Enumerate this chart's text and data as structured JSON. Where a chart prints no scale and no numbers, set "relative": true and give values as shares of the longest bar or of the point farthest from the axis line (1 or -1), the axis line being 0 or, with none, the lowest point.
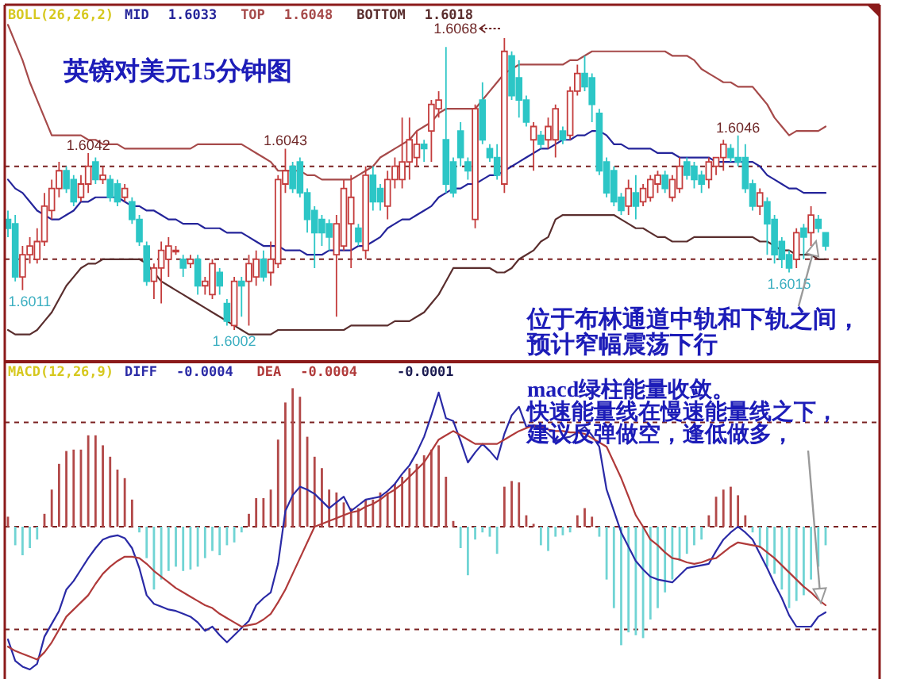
{
  "chart_data": [
    {
      "type": "candlestick",
      "title": "英镑对美元15分钟图",
      "legend_title": "BOLL(26,26,2)",
      "legend": "top left",
      "categories": [
        null,
        null,
        null,
        null,
        null,
        null,
        null,
        null,
        null,
        null,
        null,
        null,
        null,
        null,
        null,
        null,
        null,
        null,
        null,
        null,
        null,
        null,
        null,
        null,
        null,
        null,
        null,
        null,
        null,
        null,
        null,
        null,
        null,
        null,
        null,
        null,
        null,
        null,
        null,
        null,
        null,
        null,
        null,
        null,
        null,
        null,
        null,
        null,
        null,
        null,
        null,
        null,
        null,
        null,
        null,
        null,
        null,
        null,
        null,
        null,
        null,
        null,
        null,
        null,
        null,
        null,
        null,
        null,
        null,
        null,
        null,
        null,
        null,
        null,
        null,
        null,
        null,
        null,
        null,
        null,
        null,
        null,
        null,
        null,
        null,
        null,
        null,
        null,
        null,
        null,
        null,
        null,
        null,
        null,
        null,
        null,
        null,
        null,
        null,
        null,
        null,
        null,
        null,
        null,
        null,
        null,
        null,
        null,
        null,
        null,
        null,
        null,
        null
      ],
      "ohlc": [
        [
          1.6027,
          1.6029,
          1.6023,
          1.6025
        ],
        [
          1.6026,
          1.6028,
          1.6013,
          1.6014
        ],
        [
          1.6014,
          1.6021,
          1.6011,
          1.6019
        ],
        [
          1.6019,
          1.6023,
          1.6017,
          1.6021
        ],
        [
          1.6018,
          1.6025,
          1.6017,
          1.6022
        ],
        [
          1.6022,
          1.6033,
          1.6021,
          1.603
        ],
        [
          1.6029,
          1.6036,
          1.6027,
          1.6034
        ],
        [
          1.6034,
          1.604,
          1.6032,
          1.6038
        ],
        [
          1.6038,
          1.6039,
          1.6033,
          1.6034
        ],
        [
          1.6036,
          1.6037,
          1.603,
          1.6031
        ],
        [
          1.6032,
          1.6037,
          1.6031,
          1.6035
        ],
        [
          1.6035,
          1.6042,
          1.6033,
          1.6039
        ],
        [
          1.604,
          1.6041,
          1.6035,
          1.6036
        ],
        [
          1.6036,
          1.6039,
          1.6035,
          1.6037
        ],
        [
          1.6036,
          1.6037,
          1.6031,
          1.6032
        ],
        [
          1.6035,
          1.6036,
          1.603,
          1.6031
        ],
        [
          1.6032,
          1.6035,
          1.6031,
          1.6034
        ],
        [
          1.6031,
          1.6032,
          1.6026,
          1.6027
        ],
        [
          1.6027,
          1.6028,
          1.6021,
          1.6022
        ],
        [
          1.6021,
          1.6022,
          1.6012,
          1.6013
        ],
        [
          1.6013,
          1.6017,
          1.6009,
          1.6016
        ],
        [
          1.6016,
          1.6022,
          1.6008,
          1.602
        ],
        [
          1.6018,
          1.6023,
          1.6014,
          1.6021
        ],
        [
          1.602,
          1.6021,
          1.6019,
          1.602
        ],
        [
          1.6018,
          1.6019,
          1.6014,
          1.6016
        ],
        [
          1.6017,
          1.6019,
          1.6016,
          1.6018
        ],
        [
          1.6018,
          1.6019,
          1.601,
          1.6012
        ],
        [
          1.6012,
          1.6014,
          1.601,
          1.6013
        ],
        [
          1.601,
          1.6018,
          1.6009,
          1.6017
        ],
        [
          1.6015,
          1.6016,
          1.601,
          1.6012
        ],
        [
          1.6008,
          1.6009,
          1.6003,
          1.6004
        ],
        [
          1.6003,
          1.6014,
          1.6002,
          1.6013
        ],
        [
          1.6013,
          1.6014,
          1.6005,
          1.6012
        ],
        [
          1.6013,
          1.6019,
          1.6003,
          1.6017
        ],
        [
          1.6014,
          1.602,
          1.6012,
          1.6018
        ],
        [
          1.6018,
          1.602,
          1.6013,
          1.6014
        ],
        [
          1.6015,
          1.6022,
          1.6012,
          1.6018
        ],
        [
          1.6017,
          1.6037,
          1.6016,
          1.6036
        ],
        [
          1.6035,
          1.6043,
          1.6033,
          1.6038
        ],
        [
          1.6039,
          1.604,
          1.6033,
          1.6034
        ],
        [
          1.604,
          1.6041,
          1.6032,
          1.6033
        ],
        [
          1.6033,
          1.6034,
          1.6024,
          1.6027
        ],
        [
          1.6029,
          1.603,
          1.6016,
          1.6024
        ],
        [
          1.6027,
          1.6028,
          1.6021,
          1.6024
        ],
        [
          1.6026,
          1.6027,
          1.602,
          1.6023
        ],
        [
          1.6019,
          1.6028,
          1.6005,
          1.6026
        ],
        [
          1.6021,
          1.6036,
          1.602,
          1.6034
        ],
        [
          1.6026,
          1.6037,
          1.6016,
          1.6032
        ],
        [
          1.6025,
          1.6026,
          1.6021,
          1.6022
        ],
        [
          1.602,
          1.6039,
          1.6018,
          1.6037
        ],
        [
          1.6037,
          1.6039,
          1.6029,
          1.6031
        ],
        [
          1.6034,
          1.6035,
          1.6029,
          1.6031
        ],
        [
          1.603,
          1.6038,
          1.6027,
          1.6036
        ],
        [
          1.6036,
          1.6041,
          1.6034,
          1.6039
        ],
        [
          1.6036,
          1.605,
          1.6034,
          1.604
        ],
        [
          1.604,
          1.605,
          1.6036,
          1.6045
        ],
        [
          1.6041,
          1.6047,
          1.6039,
          1.6044
        ],
        [
          1.6044,
          1.6045,
          1.604,
          1.6043
        ],
        [
          1.6047,
          1.6054,
          1.604,
          1.6053
        ],
        [
          1.6052,
          1.6056,
          1.605,
          1.6054
        ],
        [
          1.6045,
          1.6066,
          1.6033,
          1.6035
        ],
        [
          1.604,
          1.6041,
          1.6032,
          1.6033
        ],
        [
          1.6047,
          1.6049,
          1.6039,
          1.6041
        ],
        [
          1.604,
          1.6041,
          1.6036,
          1.6038
        ],
        [
          1.6027,
          1.6053,
          1.6025,
          1.6052
        ],
        [
          1.6054,
          1.6058,
          1.6044,
          1.6045
        ],
        [
          1.6043,
          1.6044,
          1.604,
          1.6041
        ],
        [
          1.6041,
          1.6044,
          1.6036,
          1.6037
        ],
        [
          1.6035,
          1.6068,
          1.6033,
          1.6065
        ],
        [
          1.6064,
          1.6065,
          1.6054,
          1.6055
        ],
        [
          1.6059,
          1.6063,
          1.605,
          1.6054
        ],
        [
          1.6054,
          1.6055,
          1.6048,
          1.6049
        ],
        [
          1.6045,
          1.6049,
          1.6038,
          1.6048
        ],
        [
          1.6046,
          1.6047,
          1.6043,
          1.6044
        ],
        [
          1.6045,
          1.605,
          1.6043,
          1.6048
        ],
        [
          1.6045,
          1.6053,
          1.6041,
          1.6052
        ],
        [
          1.6047,
          1.6048,
          1.6044,
          1.6045
        ],
        [
          1.6046,
          1.6057,
          1.6045,
          1.6056
        ],
        [
          1.6056,
          1.6062,
          1.6055,
          1.606
        ],
        [
          1.606,
          1.6064,
          1.6056,
          1.6057
        ],
        [
          1.6059,
          1.606,
          1.6049,
          1.6053
        ],
        [
          1.6051,
          1.6052,
          1.6037,
          1.6038
        ],
        [
          1.604,
          1.6041,
          1.6032,
          1.6033
        ],
        [
          1.6038,
          1.6039,
          1.603,
          1.6031
        ],
        [
          1.6032,
          1.6033,
          1.6028,
          1.6029
        ],
        [
          1.603,
          1.6036,
          1.6028,
          1.6034
        ],
        [
          1.6033,
          1.6037,
          1.6027,
          1.603
        ],
        [
          1.6031,
          1.6035,
          1.603,
          1.6034
        ],
        [
          1.6032,
          1.6037,
          1.6031,
          1.6036
        ],
        [
          1.6035,
          1.6038,
          1.6033,
          1.6037
        ],
        [
          1.6037,
          1.6038,
          1.6033,
          1.6034
        ],
        [
          1.6032,
          1.6037,
          1.6031,
          1.6036
        ],
        [
          1.6034,
          1.6041,
          1.6033,
          1.6039
        ],
        [
          1.604,
          1.6041,
          1.6036,
          1.6037
        ],
        [
          1.6039,
          1.604,
          1.6034,
          1.6036
        ],
        [
          1.6037,
          1.6038,
          1.6033,
          1.6035
        ],
        [
          1.6036,
          1.6041,
          1.6034,
          1.604
        ],
        [
          1.6039,
          1.6041,
          1.6037,
          1.6041
        ],
        [
          1.6041,
          1.6045,
          1.6038,
          1.6044
        ],
        [
          1.6043,
          1.6044,
          1.604,
          1.6041
        ],
        [
          1.6041,
          1.6046,
          1.6039,
          1.604
        ],
        [
          1.6041,
          1.6044,
          1.6033,
          1.6034
        ],
        [
          1.6035,
          1.6036,
          1.6029,
          1.603
        ],
        [
          1.603,
          1.6034,
          1.6028,
          1.6033
        ],
        [
          1.6031,
          1.6032,
          1.6019,
          1.6026
        ],
        [
          1.6027,
          1.6028,
          1.6017,
          1.6019
        ],
        [
          1.6022,
          1.6023,
          1.6016,
          1.6018
        ],
        [
          1.6019,
          1.602,
          1.6015,
          1.6016
        ],
        [
          1.6018,
          1.6025,
          1.6016,
          1.6024
        ],
        [
          1.6025,
          1.6026,
          1.6018,
          1.6023
        ],
        [
          1.6024,
          1.603,
          1.6021,
          1.6028
        ],
        [
          1.6027,
          1.6028,
          1.6024,
          1.6025
        ],
        [
          1.6024,
          1.6024,
          1.602,
          1.6021
        ]
      ],
      "colors": [
        "#2cc6c6",
        "#2cc6c6",
        "#c43c3c",
        "#c43c3c",
        "#c43c3c",
        "#c43c3c",
        "#c43c3c",
        "#c43c3c",
        "#2cc6c6",
        "#2cc6c6",
        "#c43c3c",
        "#c43c3c",
        "#2cc6c6",
        "#c43c3c",
        "#2cc6c6",
        "#2cc6c6",
        "#c43c3c",
        "#2cc6c6",
        "#2cc6c6",
        "#2cc6c6",
        "#c43c3c",
        "#c43c3c",
        "#c43c3c",
        "#c43c3c",
        "#2cc6c6",
        "#c43c3c",
        "#2cc6c6",
        "#c43c3c",
        "#c43c3c",
        "#2cc6c6",
        "#2cc6c6",
        "#c43c3c",
        "#2cc6c6",
        "#c43c3c",
        "#c43c3c",
        "#2cc6c6",
        "#c43c3c",
        "#c43c3c",
        "#c43c3c",
        "#2cc6c6",
        "#2cc6c6",
        "#2cc6c6",
        "#2cc6c6",
        "#2cc6c6",
        "#2cc6c6",
        "#c43c3c",
        "#c43c3c",
        "#c43c3c",
        "#2cc6c6",
        "#c43c3c",
        "#2cc6c6",
        "#2cc6c6",
        "#c43c3c",
        "#c43c3c",
        "#c43c3c",
        "#c43c3c",
        "#c43c3c",
        "#2cc6c6",
        "#c43c3c",
        "#c43c3c",
        "#2cc6c6",
        "#2cc6c6",
        "#2cc6c6",
        "#2cc6c6",
        "#c43c3c",
        "#2cc6c6",
        "#2cc6c6",
        "#2cc6c6",
        "#c43c3c",
        "#2cc6c6",
        "#2cc6c6",
        "#2cc6c6",
        "#c43c3c",
        "#2cc6c6",
        "#c43c3c",
        "#c43c3c",
        "#2cc6c6",
        "#c43c3c",
        "#c43c3c",
        "#2cc6c6",
        "#2cc6c6",
        "#2cc6c6",
        "#2cc6c6",
        "#2cc6c6",
        "#2cc6c6",
        "#c43c3c",
        "#2cc6c6",
        "#c43c3c",
        "#c43c3c",
        "#c43c3c",
        "#2cc6c6",
        "#c43c3c",
        "#c43c3c",
        "#2cc6c6",
        "#2cc6c6",
        "#2cc6c6",
        "#c43c3c",
        "#c43c3c",
        "#c43c3c",
        "#2cc6c6",
        "#2cc6c6",
        "#2cc6c6",
        "#2cc6c6",
        "#c43c3c",
        "#2cc6c6",
        "#2cc6c6",
        "#2cc6c6",
        "#2cc6c6",
        "#c43c3c",
        "#2cc6c6",
        "#c43c3c",
        "#2cc6c6",
        "#2cc6c6"
      ],
      "series": [
        {
          "type": "line",
          "name": "MID",
          "color": "#24249a",
          "values": [
            1.6036,
            1.6034,
            1.6033,
            1.6031,
            1.6029,
            1.6028,
            1.6027,
            1.6027,
            1.6028,
            1.6029,
            1.6031,
            1.6031,
            1.6032,
            1.6032,
            1.6032,
            1.6032,
            1.6031,
            1.603,
            1.603,
            1.6029,
            1.6029,
            1.6028,
            1.6027,
            1.6027,
            1.6026,
            1.6026,
            1.6026,
            1.6025,
            1.6025,
            1.6025,
            1.6024,
            1.6024,
            1.6024,
            1.6023,
            1.6022,
            1.6021,
            1.6021,
            1.6021,
            1.602,
            1.602,
            1.602,
            1.6019,
            1.6019,
            1.6019,
            1.602,
            1.602,
            1.602,
            1.602,
            1.6021,
            1.6021,
            1.6022,
            1.6023,
            1.6025,
            1.6026,
            1.6027,
            1.6027,
            1.6028,
            1.6029,
            1.603,
            1.6032,
            1.6033,
            1.6034,
            1.6034,
            1.6035,
            1.6035,
            1.6036,
            1.6037,
            1.6037,
            1.6038,
            1.6039,
            1.604,
            1.6041,
            1.6042,
            1.6043,
            1.6043,
            1.6044,
            1.6045,
            1.6045,
            1.6046,
            1.6046,
            1.6047,
            1.6047,
            1.6046,
            1.6044,
            1.6044,
            1.6043,
            1.6043,
            1.6043,
            1.6043,
            1.6042,
            1.6042,
            1.6042,
            1.6041,
            1.6041,
            1.6041,
            1.6041,
            1.6041,
            1.604,
            1.604,
            1.604,
            1.604,
            1.604,
            1.604,
            1.6039,
            1.6037,
            1.6036,
            1.6035,
            1.6034,
            1.6034,
            1.6033,
            1.6033,
            1.6033,
            1.6033
          ]
        },
        {
          "type": "line",
          "name": "TOP",
          "color": "#a64a4a",
          "values": [
            1.6071,
            1.6067,
            1.6063,
            1.6058,
            1.6054,
            1.605,
            1.6046,
            1.6046,
            1.6046,
            1.6046,
            1.6046,
            1.6045,
            1.6045,
            1.6044,
            1.6044,
            1.6044,
            1.6043,
            1.6043,
            1.6043,
            1.6043,
            1.6043,
            1.6043,
            1.6043,
            1.6043,
            1.6043,
            1.6043,
            1.6044,
            1.6044,
            1.6044,
            1.6044,
            1.6044,
            1.6044,
            1.6044,
            1.6043,
            1.6042,
            1.6041,
            1.604,
            1.6038,
            1.6038,
            1.6038,
            1.6038,
            1.6037,
            1.6037,
            1.6036,
            1.6036,
            1.6036,
            1.6036,
            1.6036,
            1.6037,
            1.6038,
            1.6039,
            1.6041,
            1.6042,
            1.6043,
            1.6044,
            1.6045,
            1.6047,
            1.6048,
            1.6049,
            1.6051,
            1.6052,
            1.6052,
            1.6052,
            1.6052,
            1.6052,
            1.6054,
            1.6056,
            1.6058,
            1.606,
            1.6061,
            1.6062,
            1.6062,
            1.6062,
            1.6062,
            1.6062,
            1.6062,
            1.6062,
            1.6063,
            1.6063,
            1.6064,
            1.6065,
            1.6065,
            1.6065,
            1.6065,
            1.6065,
            1.6065,
            1.6065,
            1.6065,
            1.6065,
            1.6065,
            1.6065,
            1.6064,
            1.6064,
            1.6064,
            1.6063,
            1.6061,
            1.606,
            1.6059,
            1.6058,
            1.6058,
            1.6057,
            1.6057,
            1.6057,
            1.6055,
            1.6053,
            1.605,
            1.6048,
            1.6046,
            1.6047,
            1.6047,
            1.6047,
            1.6047,
            1.6048
          ]
        },
        {
          "type": "line",
          "name": "BOTTOM",
          "color": "#5a2e2e",
          "values": [
            1.6002,
            1.6001,
            1.6001,
            1.6001,
            1.6002,
            1.6004,
            1.6006,
            1.6009,
            1.6012,
            1.6014,
            1.6016,
            1.6017,
            1.6017,
            1.6018,
            1.6018,
            1.6018,
            1.6018,
            1.6018,
            1.6018,
            1.6017,
            1.6015,
            1.6013,
            1.6012,
            1.6011,
            1.601,
            1.6009,
            1.6008,
            1.6007,
            1.6006,
            1.6005,
            1.6004,
            1.6003,
            1.6002,
            1.6001,
            1.6001,
            1.6001,
            1.6001,
            1.6002,
            1.6002,
            1.6002,
            1.6002,
            1.6002,
            1.6002,
            1.6002,
            1.6002,
            1.6002,
            1.6002,
            1.6003,
            1.6003,
            1.6003,
            1.6003,
            1.6003,
            1.6003,
            1.6004,
            1.6004,
            1.6004,
            1.6005,
            1.6006,
            1.6008,
            1.601,
            1.6013,
            1.6016,
            1.6016,
            1.6016,
            1.6016,
            1.6016,
            1.6016,
            1.6015,
            1.6015,
            1.6016,
            1.6018,
            1.6019,
            1.602,
            1.6022,
            1.6023,
            1.6027,
            1.6028,
            1.6028,
            1.6028,
            1.6028,
            1.6028,
            1.6028,
            1.6028,
            1.6028,
            1.6027,
            1.6026,
            1.6025,
            1.6025,
            1.6024,
            1.6023,
            1.6023,
            1.6022,
            1.6022,
            1.6022,
            1.6023,
            1.6023,
            1.6023,
            1.6023,
            1.6023,
            1.6023,
            1.6023,
            1.6023,
            1.6023,
            1.6022,
            1.6022,
            1.6021,
            1.602,
            1.602,
            1.6019,
            1.6019,
            1.6019,
            1.6018,
            1.6018
          ]
        }
      ],
      "ref_lines": [
        {
          "axis": "y",
          "value": 1.6039,
          "color": "#7a2020",
          "line_style": "dashed"
        },
        {
          "axis": "y",
          "value": 1.6018,
          "color": "#7a2020",
          "line_style": "dashed"
        }
      ],
      "annotations": [
        "1.6033",
        "1.6048",
        "1.6018",
        "1.6068",
        {
          "text": "1.6042",
          "y": 1.6042
        },
        {
          "text": "1.6043",
          "y": 1.6043
        },
        {
          "text": "1.6046",
          "y": 1.6046
        },
        {
          "text": "1.6011",
          "y": 1.6011
        },
        {
          "text": "1.6002",
          "y": 1.6002
        },
        {
          "text": "1.6015",
          "y": 1.6015
        },
        "位于布林通道中轨和下轨之间，",
        "预计窄幅震荡下行"
      ]
    },
    {
      "type": "bar",
      "relative": true,
      "legend_title": "MACD(12,26,9)",
      "legend": "top left",
      "categories": [
        null,
        null,
        null,
        null,
        null,
        null,
        null,
        null,
        null,
        null,
        null,
        null,
        null,
        null,
        null,
        null,
        null,
        null,
        null,
        null,
        null,
        null,
        null,
        null,
        null,
        null,
        null,
        null,
        null,
        null,
        null,
        null,
        null,
        null,
        null,
        null,
        null,
        null,
        null,
        null,
        null,
        null,
        null,
        null,
        null,
        null,
        null,
        null,
        null,
        null,
        null,
        null,
        null,
        null,
        null,
        null,
        null,
        null,
        null,
        null,
        null,
        null,
        null,
        null,
        null,
        null,
        null,
        null,
        null,
        null,
        null,
        null,
        null,
        null,
        null,
        null,
        null,
        null,
        null,
        null,
        null,
        null,
        null,
        null,
        null,
        null,
        null,
        null,
        null,
        null,
        null,
        null,
        null,
        null,
        null,
        null,
        null,
        null,
        null,
        null,
        null,
        null,
        null,
        null,
        null,
        null,
        null,
        null,
        null,
        null,
        null,
        null,
        null
      ],
      "series": [
        {
          "type": "line",
          "name": "DIFF",
          "color": "#2a2aa6",
          "values": [
            -0.79,
            -0.94,
            -0.98,
            -1,
            -0.96,
            -0.77,
            -0.68,
            -0.59,
            -0.44,
            -0.38,
            -0.3,
            -0.22,
            -0.15,
            -0.09,
            -0.07,
            -0.06,
            -0.08,
            -0.15,
            -0.29,
            -0.48,
            -0.54,
            -0.56,
            -0.58,
            -0.59,
            -0.61,
            -0.63,
            -0.67,
            -0.73,
            -0.7,
            -0.76,
            -0.81,
            -0.76,
            -0.71,
            -0.66,
            -0.55,
            -0.5,
            -0.46,
            -0.26,
            0.11,
            0.22,
            0.28,
            0.26,
            0.23,
            0.18,
            0.13,
            0.17,
            0.21,
            0.11,
            0.15,
            0.19,
            0.2,
            0.21,
            0.25,
            0.3,
            0.37,
            0.43,
            0.52,
            0.63,
            0.78,
            0.94,
            0.76,
            0.74,
            0.6,
            0.45,
            0.52,
            0.58,
            0.53,
            0.47,
            0.65,
            0.78,
            0.84,
            0.7,
            0.7,
            0.69,
            0.65,
            0.6,
            0.62,
            0.63,
            0.66,
            0.7,
            0.64,
            0.56,
            0.26,
            0.11,
            -0.04,
            -0.14,
            -0.24,
            -0.3,
            -0.35,
            -0.37,
            -0.38,
            -0.39,
            -0.34,
            -0.29,
            -0.28,
            -0.27,
            -0.26,
            -0.17,
            -0.09,
            -0.04,
            0,
            -0.04,
            -0.09,
            -0.19,
            -0.29,
            -0.4,
            -0.5,
            -0.62,
            -0.7,
            -0.7,
            -0.7,
            -0.63,
            -0.6
          ]
        },
        {
          "type": "line",
          "name": "DEA",
          "color": "#b03a3a",
          "values": [
            -0.84,
            -0.87,
            -0.89,
            -0.91,
            -0.93,
            -0.88,
            -0.81,
            -0.72,
            -0.63,
            -0.58,
            -0.53,
            -0.48,
            -0.4,
            -0.33,
            -0.28,
            -0.24,
            -0.21,
            -0.21,
            -0.22,
            -0.26,
            -0.31,
            -0.35,
            -0.39,
            -0.43,
            -0.46,
            -0.49,
            -0.52,
            -0.55,
            -0.57,
            -0.61,
            -0.64,
            -0.67,
            -0.7,
            -0.69,
            -0.68,
            -0.65,
            -0.61,
            -0.53,
            -0.44,
            -0.33,
            -0.22,
            -0.11,
            0,
            0.02,
            0.04,
            0.06,
            0.08,
            0.1,
            0.11,
            0.14,
            0.16,
            0.19,
            0.23,
            0.26,
            0.3,
            0.35,
            0.4,
            0.45,
            0.53,
            0.61,
            0.64,
            0.67,
            0.64,
            0.61,
            0.58,
            0.58,
            0.58,
            0.58,
            0.61,
            0.64,
            0.67,
            0.69,
            0.71,
            0.7,
            0.68,
            0.67,
            0.67,
            0.66,
            0.66,
            0.65,
            0.62,
            0.59,
            0.56,
            0.45,
            0.34,
            0.21,
            0.08,
            0,
            -0.09,
            -0.13,
            -0.18,
            -0.22,
            -0.23,
            -0.25,
            -0.26,
            -0.25,
            -0.23,
            -0.22,
            -0.18,
            -0.14,
            -0.11,
            -0.12,
            -0.13,
            -0.14,
            -0.18,
            -0.22,
            -0.27,
            -0.32,
            -0.37,
            -0.42,
            -0.46,
            -0.51,
            -0.55
          ]
        },
        {
          "values": [
            0.07,
            -0.13,
            -0.2,
            -0.15,
            -0.09,
            0.09,
            0.26,
            0.44,
            0.53,
            0.54,
            0.54,
            0.64,
            0.64,
            0.57,
            0.49,
            0.4,
            0.34,
            0.19,
            -0.04,
            -0.22,
            -0.44,
            -0.37,
            -0.31,
            -0.28,
            -0.31,
            -0.3,
            -0.28,
            -0.22,
            -0.17,
            -0.2,
            -0.13,
            -0.11,
            -0.04,
            0.09,
            0.2,
            0.2,
            0.26,
            0.61,
            0.87,
            0.97,
            0.91,
            0.63,
            0.49,
            0.41,
            0.26,
            0.24,
            0.17,
            0.13,
            0.13,
            0.19,
            0.19,
            0.24,
            0.24,
            0.3,
            0.35,
            0.41,
            0.44,
            0.5,
            0.54,
            0.57,
            0.35,
            0.04,
            -0.15,
            -0.34,
            -0.09,
            -0.04,
            -0.07,
            -0.19,
            0.28,
            0.32,
            0.31,
            0.08,
            0.02,
            -0.13,
            -0.17,
            -0.07,
            -0.06,
            -0.04,
            0.08,
            0.13,
            0.07,
            -0.07,
            -0.37,
            -0.57,
            -0.83,
            -0.74,
            -0.76,
            -0.78,
            -0.65,
            -0.57,
            -0.46,
            -0.37,
            -0.24,
            -0.19,
            -0.13,
            -0.09,
            0.08,
            0.21,
            0.26,
            0.28,
            0.22,
            0.08,
            -0.04,
            -0.15,
            -0.28,
            -0.33,
            -0.44,
            -0.57,
            -0.52,
            -0.48,
            -0.37,
            -0.28,
            -0.13
          ],
          "colors": [
            "#b24848",
            "#70d4d4",
            "#70d4d4",
            "#70d4d4",
            "#70d4d4",
            "#b24848",
            "#b24848",
            "#b24848",
            "#b24848",
            "#b24848",
            "#b24848",
            "#b24848",
            "#b24848",
            "#b24848",
            "#b24848",
            "#b24848",
            "#b24848",
            "#b24848",
            "#70d4d4",
            "#70d4d4",
            "#70d4d4",
            "#70d4d4",
            "#70d4d4",
            "#70d4d4",
            "#70d4d4",
            "#70d4d4",
            "#70d4d4",
            "#70d4d4",
            "#70d4d4",
            "#70d4d4",
            "#70d4d4",
            "#70d4d4",
            "#70d4d4",
            "#b24848",
            "#b24848",
            "#b24848",
            "#b24848",
            "#b24848",
            "#b24848",
            "#b24848",
            "#b24848",
            "#b24848",
            "#b24848",
            "#b24848",
            "#b24848",
            "#b24848",
            "#b24848",
            "#b24848",
            "#b24848",
            "#b24848",
            "#b24848",
            "#b24848",
            "#b24848",
            "#b24848",
            "#b24848",
            "#b24848",
            "#b24848",
            "#b24848",
            "#b24848",
            "#b24848",
            "#b24848",
            "#b24848",
            "#70d4d4",
            "#70d4d4",
            "#70d4d4",
            "#70d4d4",
            "#70d4d4",
            "#70d4d4",
            "#b24848",
            "#b24848",
            "#b24848",
            "#b24848",
            "#b24848",
            "#70d4d4",
            "#70d4d4",
            "#70d4d4",
            "#70d4d4",
            "#70d4d4",
            "#b24848",
            "#b24848",
            "#b24848",
            "#70d4d4",
            "#70d4d4",
            "#70d4d4",
            "#70d4d4",
            "#70d4d4",
            "#70d4d4",
            "#70d4d4",
            "#70d4d4",
            "#70d4d4",
            "#70d4d4",
            "#70d4d4",
            "#70d4d4",
            "#70d4d4",
            "#70d4d4",
            "#70d4d4",
            "#b24848",
            "#b24848",
            "#b24848",
            "#b24848",
            "#b24848",
            "#b24848",
            "#70d4d4",
            "#70d4d4",
            "#70d4d4",
            "#70d4d4",
            "#70d4d4",
            "#70d4d4",
            "#70d4d4",
            "#70d4d4",
            "#70d4d4",
            "#70d4d4",
            "#70d4d4"
          ]
        }
      ],
      "ref_lines": [
        {
          "axis": "y",
          "value": 0.73,
          "color": "#7a2020",
          "line_style": "dashed"
        },
        {
          "axis": "y",
          "value": 0,
          "color": "#7a2020",
          "line_style": "dashed"
        },
        {
          "axis": "y",
          "value": -0.72,
          "color": "#7a2020",
          "line_style": "dashed"
        }
      ],
      "annotations": [
        "-0.0004",
        "-0.0004",
        "-0.0001",
        "macd绿柱能量收敛。",
        "快速能量线在慢速能量线之下，",
        "建议反弹做空，逢低做多，"
      ]
    }
  ]
}
